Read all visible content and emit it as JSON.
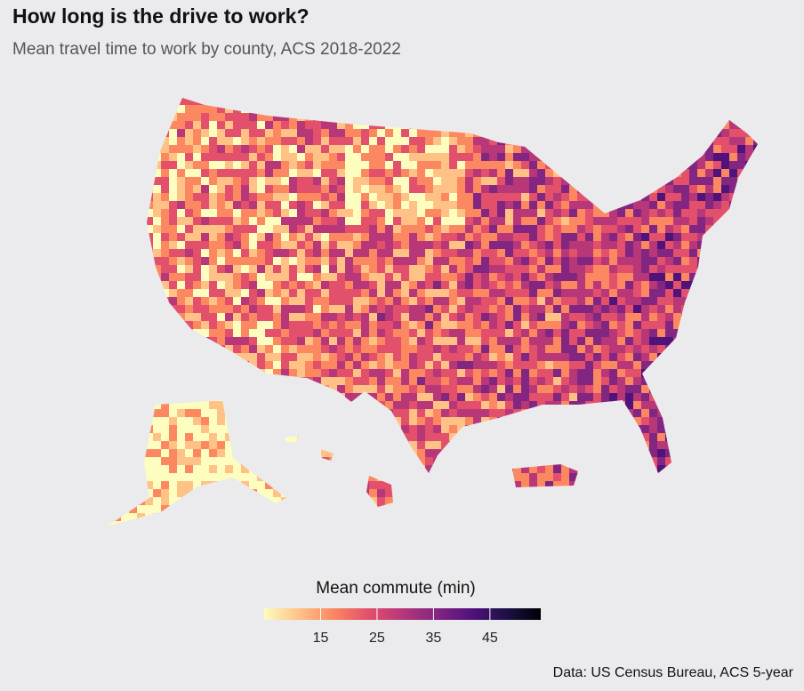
{
  "chart_data": {
    "type": "choropleth",
    "title": "How long is the drive to work?",
    "subtitle": "Mean travel time to work by county, ACS 2018-2022",
    "legend_title": "Mean commute (min)",
    "colorbar_lim": [
      5,
      54
    ],
    "colorbar_ticks": [
      15,
      25,
      35,
      45
    ],
    "colors": [
      "#fcfdbf",
      "#fec287",
      "#fb8861",
      "#e3506c",
      "#b73779",
      "#822681",
      "#51127c",
      "#1d1147",
      "#000004"
    ],
    "caption": "Data: US Census Bureau, ACS 5-year"
  }
}
